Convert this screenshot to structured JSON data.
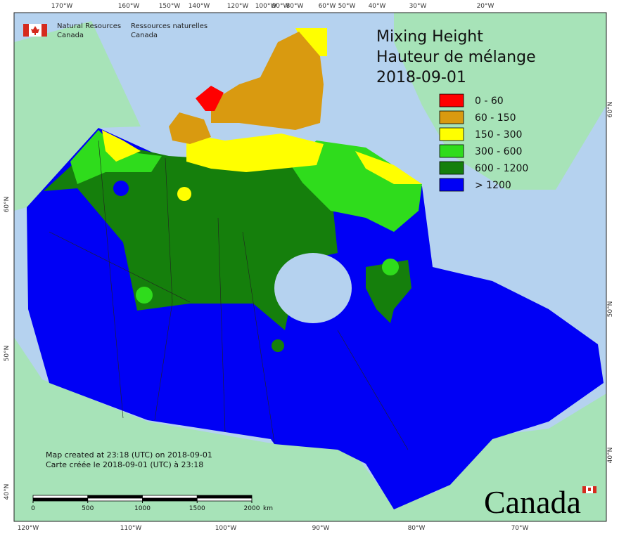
{
  "agency": {
    "en_line1": "Natural Resources",
    "en_line2": "Canada",
    "fr_line1": "Ressources naturelles",
    "fr_line2": "Canada"
  },
  "title": [
    "Mixing Height",
    "Hauteur de mélange",
    "2018-09-01"
  ],
  "legend": [
    {
      "label": "0 - 60",
      "color": "#ff0000"
    },
    {
      "label": "60 - 150",
      "color": "#d99a10"
    },
    {
      "label": "150 - 300",
      "color": "#ffff00"
    },
    {
      "label": "300 - 600",
      "color": "#2fdc1c"
    },
    {
      "label": "600 - 1200",
      "color": "#157f0c"
    },
    {
      "label": "> 1200",
      "color": "#0000f5"
    }
  ],
  "graticule": {
    "top": [
      "170°W",
      "160°W",
      "150°W",
      "140°W",
      "120°W",
      "100°W",
      "90°W",
      "80°W",
      "60°W",
      "50°W",
      "40°W",
      "30°W",
      "20°W"
    ],
    "bottom": [
      "120°W",
      "110°W",
      "100°W",
      "90°W",
      "80°W",
      "70°W"
    ],
    "left": [
      "60°N",
      "50°N",
      "40°N"
    ],
    "right": [
      "60°N",
      "50°N",
      "40°N"
    ]
  },
  "footer": {
    "created_en": "Map created at 23:18 (UTC) on 2018-09-01",
    "created_fr": "Carte créée le 2018-09-01 (UTC) à 23:18"
  },
  "scale_bar": {
    "ticks": [
      0,
      500,
      1000,
      1500,
      2000
    ],
    "unit": "km"
  },
  "wordmark": "Canada"
}
